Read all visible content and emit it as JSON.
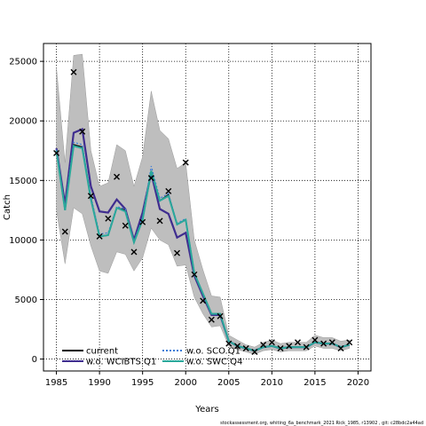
{
  "chart_data": {
    "type": "line",
    "title": "",
    "xlabel": "Years",
    "ylabel": "Catch",
    "xlim": [
      1983.5,
      2021.5
    ],
    "ylim": [
      -1000,
      26500
    ],
    "xticks": [
      1985,
      1990,
      1995,
      2000,
      2005,
      2010,
      2015,
      2020
    ],
    "yticks": [
      0,
      5000,
      10000,
      15000,
      20000,
      25000
    ],
    "grid": true,
    "legend_position": "bottom-left",
    "x": [
      1985,
      1986,
      1987,
      1988,
      1989,
      1990,
      1991,
      1992,
      1993,
      1994,
      1995,
      1996,
      1997,
      1998,
      1999,
      2000,
      2001,
      2002,
      2003,
      2004,
      2005,
      2006,
      2007,
      2008,
      2009,
      2010,
      2011,
      2012,
      2013,
      2014,
      2015,
      2016,
      2017,
      2018,
      2019
    ],
    "band": {
      "upper": [
        24500,
        16500,
        25500,
        25600,
        17500,
        14500,
        14800,
        18000,
        17500,
        14500,
        17000,
        22500,
        19200,
        18500,
        16000,
        16500,
        10000,
        7500,
        5300,
        5200,
        2000,
        1600,
        1200,
        1000,
        1400,
        1600,
        1300,
        1400,
        1400,
        1400,
        2000,
        1800,
        1800,
        1500,
        1600
      ],
      "lower": [
        12500,
        8000,
        12700,
        12200,
        9500,
        7400,
        7200,
        9000,
        8800,
        7400,
        8500,
        11000,
        10000,
        9600,
        7800,
        7900,
        5200,
        3800,
        2700,
        2800,
        1100,
        800,
        600,
        400,
        700,
        800,
        600,
        700,
        700,
        700,
        1100,
        900,
        900,
        700,
        900
      ],
      "color": "#bebebe"
    },
    "series": [
      {
        "name": "current",
        "color": "#000000",
        "dash": "",
        "values": [
          17500,
          12500,
          18000,
          17800,
          13500,
          10300,
          10400,
          12700,
          12500,
          9800,
          11700,
          15800,
          13300,
          13800,
          11300,
          11700,
          7200,
          5500,
          3800,
          3800,
          1500,
          1100,
          900,
          700,
          1000,
          1100,
          900,
          1000,
          1000,
          1000,
          1400,
          1300,
          1300,
          1000,
          1200
        ]
      },
      {
        "name": "w.o. WCIBTS.Q1",
        "color": "#3f2d8f",
        "dash": "",
        "values": [
          17700,
          13000,
          19000,
          19300,
          14500,
          12400,
          12300,
          13400,
          12600,
          10000,
          12300,
          15600,
          12600,
          12200,
          10200,
          10600,
          7000,
          5300,
          3700,
          3700,
          1500,
          1100,
          900,
          700,
          1000,
          1100,
          900,
          1000,
          1000,
          1000,
          1400,
          1300,
          1300,
          1000,
          1200
        ]
      },
      {
        "name": "w.o. SCO.Q1",
        "color": "#3b7dd8",
        "dash": "2,2",
        "values": [
          17600,
          12700,
          18200,
          18000,
          13700,
          10500,
          10600,
          12800,
          12600,
          9900,
          11900,
          16200,
          13500,
          13900,
          11400,
          11800,
          7300,
          5500,
          3800,
          3800,
          1500,
          1100,
          900,
          700,
          1000,
          1100,
          900,
          1000,
          1000,
          1000,
          1400,
          1300,
          1300,
          1000,
          1200
        ]
      },
      {
        "name": "w.o. SWC.Q4",
        "color": "#2aa89b",
        "dash": "",
        "values": [
          17500,
          12500,
          17900,
          17700,
          13400,
          10300,
          10400,
          12700,
          12400,
          9800,
          11700,
          15800,
          13300,
          13700,
          11300,
          11700,
          7200,
          5500,
          3800,
          3800,
          1500,
          1100,
          900,
          700,
          1000,
          1100,
          900,
          1000,
          1000,
          1000,
          1400,
          1300,
          1300,
          1000,
          1200
        ]
      }
    ],
    "observed": {
      "marker": "x",
      "x": [
        1985,
        1986,
        1987,
        1988,
        1989,
        1990,
        1991,
        1992,
        1993,
        1994,
        1995,
        1996,
        1997,
        1998,
        1999,
        2000,
        2001,
        2002,
        2003,
        2004,
        2005,
        2006,
        2007,
        2008,
        2009,
        2010,
        2011,
        2012,
        2013,
        2014,
        2015,
        2016,
        2017,
        2018,
        2019
      ],
      "y": [
        17300,
        10700,
        24100,
        19100,
        13700,
        10300,
        11800,
        15300,
        11200,
        9000,
        11500,
        15200,
        11600,
        14100,
        8900,
        16500,
        7100,
        4900,
        3300,
        3600,
        1300,
        1100,
        900,
        600,
        1200,
        1400,
        900,
        1100,
        1400,
        1000,
        1600,
        1300,
        1400,
        900,
        1400
      ]
    }
  },
  "legend": {
    "items": [
      {
        "label": "current",
        "color": "#000000",
        "dash": ""
      },
      {
        "label": "w.o. WCIBTS.Q1",
        "color": "#3f2d8f",
        "dash": ""
      },
      {
        "label": "w.o. SCO.Q1",
        "color": "#3b7dd8",
        "dash": "2,2"
      },
      {
        "label": "w.o. SWC.Q4",
        "color": "#2aa89b",
        "dash": ""
      }
    ]
  },
  "footer": {
    "text": "stockassessment.org, whiting_6a_benchmark_2021 Rick_1985, r13902 , git: c28bdc2a44ad"
  }
}
